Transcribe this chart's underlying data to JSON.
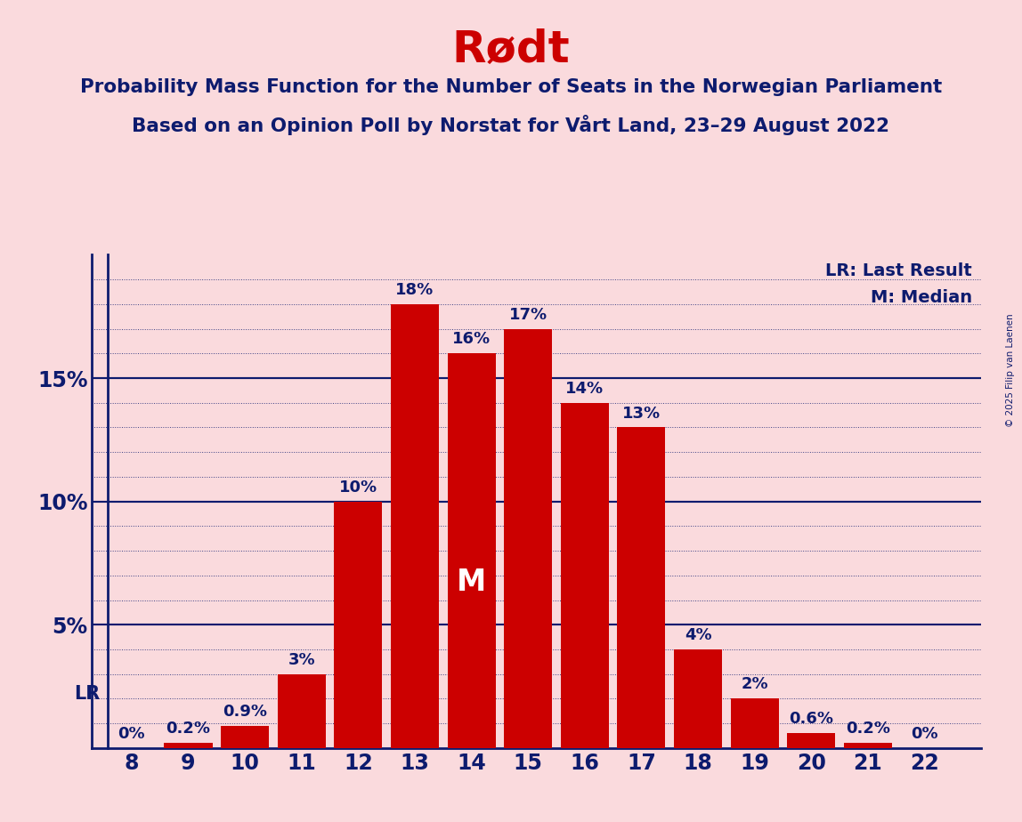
{
  "title": "Rødt",
  "subtitle1": "Probability Mass Function for the Number of Seats in the Norwegian Parliament",
  "subtitle2": "Based on an Opinion Poll by Norstat for Vårt Land, 23–29 August 2022",
  "copyright": "© 2025 Filip van Laenen",
  "seats": [
    8,
    9,
    10,
    11,
    12,
    13,
    14,
    15,
    16,
    17,
    18,
    19,
    20,
    21,
    22
  ],
  "probabilities": [
    0.0,
    0.2,
    0.9,
    3.0,
    10.0,
    18.0,
    16.0,
    17.0,
    14.0,
    13.0,
    4.0,
    2.0,
    0.6,
    0.2,
    0.0
  ],
  "prob_labels": [
    "0%",
    "0.2%",
    "0.9%",
    "3%",
    "10%",
    "18%",
    "16%",
    "17%",
    "14%",
    "13%",
    "4%",
    "2%",
    "0.6%",
    "0.2%",
    "0%"
  ],
  "bar_color": "#cc0000",
  "background_color": "#fadadd",
  "text_color": "#0d1b6e",
  "title_color": "#cc0000",
  "median_seat": 14,
  "lr_seat": 8,
  "ylim": [
    0,
    20
  ],
  "yticks": [
    5,
    10,
    15
  ],
  "ytick_labels": [
    "5%",
    "10%",
    "15%"
  ],
  "legend_lr": "LR: Last Result",
  "legend_m": "M: Median",
  "lr_label": "LR",
  "m_label": "M",
  "bar_width": 0.85,
  "xlim_left": 7.3,
  "xlim_right": 23.0
}
